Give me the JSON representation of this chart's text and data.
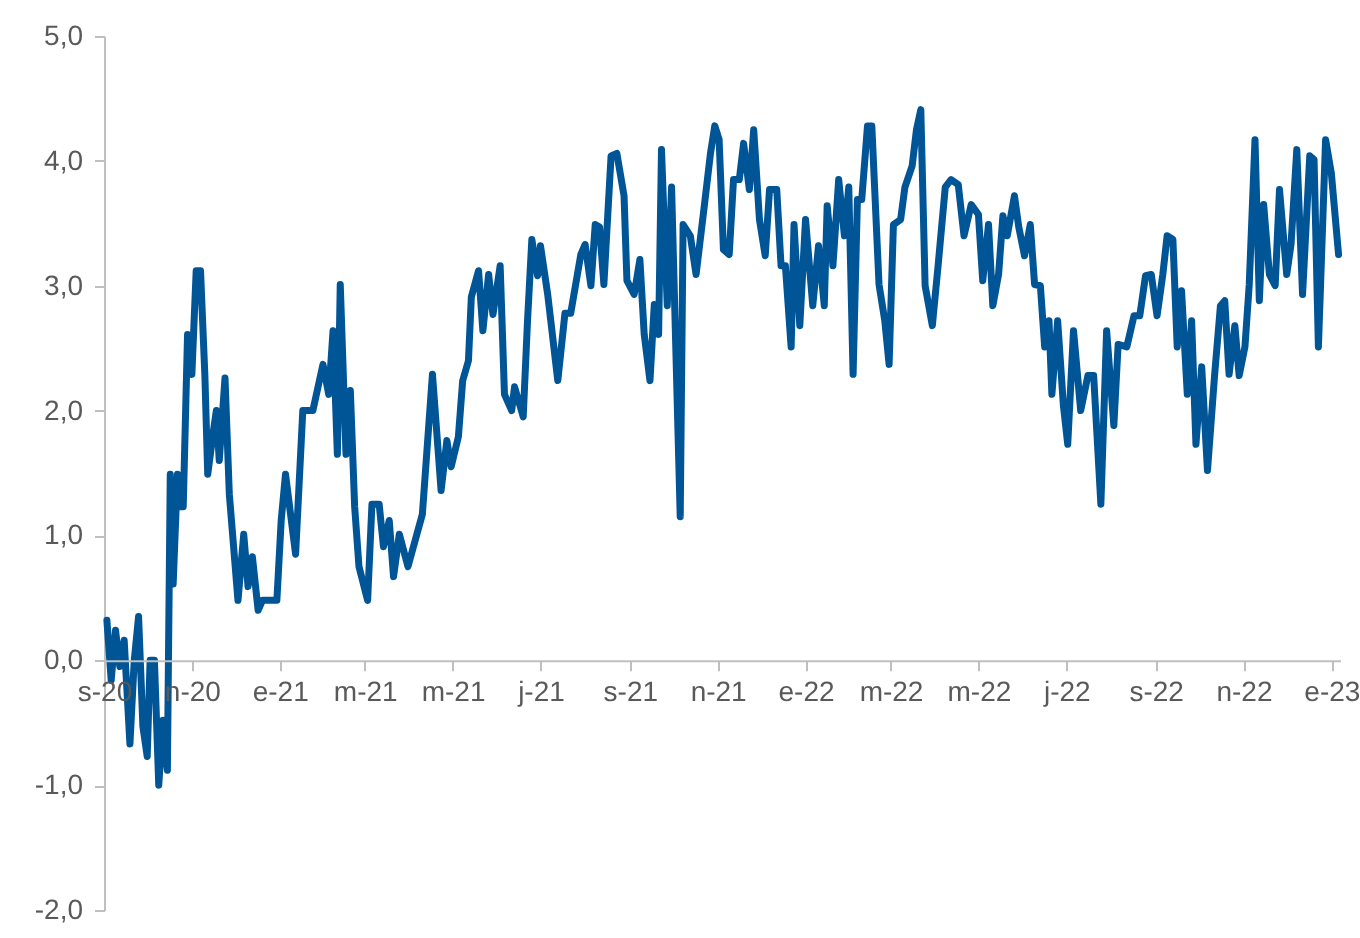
{
  "chart_data": {
    "type": "line",
    "x": [
      "2020-09-03",
      "2020-09-06",
      "2020-09-09",
      "2020-09-12",
      "2020-09-15",
      "2020-09-19",
      "2020-09-22",
      "2020-09-25",
      "2020-09-28",
      "2020-10-01",
      "2020-10-03",
      "2020-10-06",
      "2020-10-09",
      "2020-10-12",
      "2020-10-15",
      "2020-10-17",
      "2020-10-19",
      "2020-10-22",
      "2020-10-24",
      "2020-10-26",
      "2020-10-29",
      "2020-11-01",
      "2020-11-04",
      "2020-11-07",
      "2020-11-10",
      "2020-11-12",
      "2020-11-16",
      "2020-11-18",
      "2020-11-20",
      "2020-11-24",
      "2020-11-27",
      "2020-12-03",
      "2020-12-07",
      "2020-12-10",
      "2020-12-13",
      "2020-12-17",
      "2020-12-20",
      "2020-12-30",
      "2021-01-02",
      "2021-01-05",
      "2021-01-12",
      "2021-01-17",
      "2021-01-24",
      "2021-01-31",
      "2021-02-04",
      "2021-02-07",
      "2021-02-10",
      "2021-02-12",
      "2021-02-16",
      "2021-02-19",
      "2021-02-22",
      "2021-02-25",
      "2021-03-03",
      "2021-03-06",
      "2021-03-11",
      "2021-03-14",
      "2021-03-18",
      "2021-03-21",
      "2021-03-25",
      "2021-03-31",
      "2021-04-10",
      "2021-04-17",
      "2021-04-23",
      "2021-04-27",
      "2021-04-30",
      "2021-05-05",
      "2021-05-08",
      "2021-05-12",
      "2021-05-14",
      "2021-05-19",
      "2021-05-22",
      "2021-05-26",
      "2021-05-29",
      "2021-06-03",
      "2021-06-06",
      "2021-06-11",
      "2021-06-13",
      "2021-06-19",
      "2021-06-22",
      "2021-06-25",
      "2021-06-29",
      "2021-07-01",
      "2021-07-06",
      "2021-07-13",
      "2021-07-18",
      "2021-07-22",
      "2021-07-29",
      "2021-08-01",
      "2021-08-05",
      "2021-08-08",
      "2021-08-11",
      "2021-08-14",
      "2021-08-19",
      "2021-08-23",
      "2021-08-28",
      "2021-08-30",
      "2021-09-04",
      "2021-09-08",
      "2021-09-11",
      "2021-09-15",
      "2021-09-18",
      "2021-09-21",
      "2021-09-23",
      "2021-09-27",
      "2021-09-30",
      "2021-10-06",
      "2021-10-08",
      "2021-10-13",
      "2021-10-17",
      "2021-10-22",
      "2021-10-27",
      "2021-10-30",
      "2021-11-02",
      "2021-11-05",
      "2021-11-09",
      "2021-11-12",
      "2021-11-16",
      "2021-11-19",
      "2021-11-23",
      "2021-11-26",
      "2021-11-30",
      "2021-12-04",
      "2021-12-07",
      "2021-12-12",
      "2021-12-15",
      "2021-12-18",
      "2021-12-22",
      "2021-12-24",
      "2021-12-28",
      "2022-01-01",
      "2022-01-06",
      "2022-01-10",
      "2022-01-14",
      "2022-01-16",
      "2022-01-20",
      "2022-01-24",
      "2022-01-28",
      "2022-01-31",
      "2022-02-03",
      "2022-02-06",
      "2022-02-09",
      "2022-02-13",
      "2022-02-16",
      "2022-02-21",
      "2022-02-25",
      "2022-02-28",
      "2022-03-03",
      "2022-03-08",
      "2022-03-11",
      "2022-03-16",
      "2022-03-19",
      "2022-03-22",
      "2022-03-25",
      "2022-03-30",
      "2022-04-03",
      "2022-04-08",
      "2022-04-12",
      "2022-04-17",
      "2022-04-21",
      "2022-04-26",
      "2022-05-01",
      "2022-05-04",
      "2022-05-08",
      "2022-05-11",
      "2022-05-15",
      "2022-05-18",
      "2022-05-21",
      "2022-05-26",
      "2022-05-29",
      "2022-06-02",
      "2022-06-06",
      "2022-06-09",
      "2022-06-13",
      "2022-06-16",
      "2022-06-19",
      "2022-06-21",
      "2022-06-25",
      "2022-06-29",
      "2022-07-02",
      "2022-07-06",
      "2022-07-11",
      "2022-07-16",
      "2022-07-20",
      "2022-07-25",
      "2022-07-29",
      "2022-08-03",
      "2022-08-06",
      "2022-08-12",
      "2022-08-17",
      "2022-08-21",
      "2022-08-25",
      "2022-08-29",
      "2022-09-02",
      "2022-09-06",
      "2022-09-09",
      "2022-09-13",
      "2022-09-16",
      "2022-09-19",
      "2022-09-23",
      "2022-09-26",
      "2022-09-29",
      "2022-10-03",
      "2022-10-07",
      "2022-10-12",
      "2022-10-16",
      "2022-10-19",
      "2022-10-22",
      "2022-10-26",
      "2022-10-29",
      "2022-11-02",
      "2022-11-05",
      "2022-11-09",
      "2022-11-12",
      "2022-11-15",
      "2022-11-19",
      "2022-11-23",
      "2022-11-26",
      "2022-12-01",
      "2022-12-04",
      "2022-12-08",
      "2022-12-12",
      "2022-12-17",
      "2022-12-20",
      "2022-12-23",
      "2022-12-28",
      "2023-01-01",
      "2023-01-06"
    ],
    "series": [
      {
        "color": "#005596",
        "values": [
          0.32,
          -0.16,
          0.24,
          -0.05,
          0.16,
          -0.67,
          0.0,
          0.35,
          -0.53,
          -0.77,
          0.0,
          0.0,
          -1.0,
          -0.48,
          -0.88,
          1.49,
          0.61,
          1.49,
          1.23,
          1.23,
          2.61,
          2.29,
          3.12,
          3.12,
          2.29,
          1.49,
          1.84,
          2.0,
          1.6,
          2.26,
          1.33,
          0.48,
          1.01,
          0.59,
          0.83,
          0.4,
          0.48,
          0.48,
          1.12,
          1.49,
          0.85,
          2.0,
          2.0,
          2.37,
          2.13,
          2.64,
          1.65,
          3.01,
          1.65,
          2.16,
          1.23,
          0.75,
          0.48,
          1.25,
          1.25,
          0.91,
          1.12,
          0.67,
          1.01,
          0.75,
          1.17,
          2.29,
          1.36,
          1.76,
          1.55,
          1.79,
          2.24,
          2.4,
          2.91,
          3.12,
          2.64,
          3.09,
          2.77,
          3.16,
          2.13,
          2.0,
          2.19,
          1.95,
          2.72,
          3.37,
          3.08,
          3.32,
          2.93,
          2.24,
          2.78,
          2.78,
          3.25,
          3.33,
          3.0,
          3.49,
          3.47,
          3.01,
          4.04,
          4.06,
          3.72,
          3.04,
          2.93,
          3.21,
          2.61,
          2.24,
          2.85,
          2.61,
          4.09,
          2.84,
          3.79,
          1.15,
          3.49,
          3.4,
          3.09,
          3.57,
          4.06,
          4.28,
          4.17,
          3.29,
          3.25,
          3.85,
          3.85,
          4.14,
          3.77,
          4.25,
          3.53,
          3.24,
          3.77,
          3.77,
          3.16,
          3.16,
          2.51,
          3.49,
          2.68,
          3.53,
          2.84,
          3.32,
          2.84,
          3.64,
          3.16,
          3.85,
          3.4,
          3.79,
          2.29,
          3.69,
          3.69,
          4.28,
          4.28,
          3.01,
          2.72,
          2.37,
          3.49,
          3.53,
          3.79,
          3.96,
          4.25,
          4.41,
          3.0,
          2.68,
          3.16,
          3.79,
          3.85,
          3.81,
          3.4,
          3.65,
          3.57,
          3.04,
          3.49,
          2.84,
          3.09,
          3.56,
          3.4,
          3.72,
          3.47,
          3.24,
          3.49,
          3.01,
          3.0,
          2.51,
          2.72,
          2.13,
          2.72,
          2.04,
          1.73,
          2.64,
          2.0,
          2.28,
          2.28,
          1.25,
          2.64,
          1.88,
          2.53,
          2.51,
          2.76,
          2.76,
          3.08,
          3.09,
          2.76,
          3.09,
          3.4,
          3.37,
          2.51,
          2.96,
          2.13,
          2.72,
          1.73,
          2.35,
          1.52,
          2.29,
          2.84,
          2.88,
          2.29,
          2.68,
          2.28,
          2.51,
          3.01,
          4.17,
          2.88,
          3.65,
          3.09,
          3.0,
          3.77,
          3.09,
          3.33,
          4.09,
          2.93,
          4.04,
          4.01,
          2.51,
          4.17,
          3.9,
          3.25
        ]
      }
    ],
    "xlim": [
      "2020-09-01",
      "2023-01-07"
    ],
    "xticks": [
      {
        "value": "2020-09-01",
        "label": "s-20"
      },
      {
        "value": "2020-11-01",
        "label": "n-20"
      },
      {
        "value": "2021-01-01",
        "label": "e-21"
      },
      {
        "value": "2021-03-01",
        "label": "m-21"
      },
      {
        "value": "2021-05-01",
        "label": "m-21"
      },
      {
        "value": "2021-07-01",
        "label": "j-21"
      },
      {
        "value": "2021-09-01",
        "label": "s-21"
      },
      {
        "value": "2021-11-01",
        "label": "n-21"
      },
      {
        "value": "2022-01-01",
        "label": "e-22"
      },
      {
        "value": "2022-03-01",
        "label": "m-22"
      },
      {
        "value": "2022-05-01",
        "label": "m-22"
      },
      {
        "value": "2022-07-01",
        "label": "j-22"
      },
      {
        "value": "2022-09-01",
        "label": "s-22"
      },
      {
        "value": "2022-11-01",
        "label": "n-22"
      },
      {
        "value": "2023-01-01",
        "label": "e-23"
      }
    ],
    "ylim": [
      -2,
      5
    ],
    "yticks": [
      {
        "value": -2,
        "label": "-2,0"
      },
      {
        "value": -1,
        "label": "-1,0"
      },
      {
        "value": 0,
        "label": "0,0"
      },
      {
        "value": 1,
        "label": "1,0"
      },
      {
        "value": 2,
        "label": "2,0"
      },
      {
        "value": 3,
        "label": "3,0"
      },
      {
        "value": 4,
        "label": "4,0"
      },
      {
        "value": 5,
        "label": "5,0"
      }
    ],
    "grid": false
  }
}
